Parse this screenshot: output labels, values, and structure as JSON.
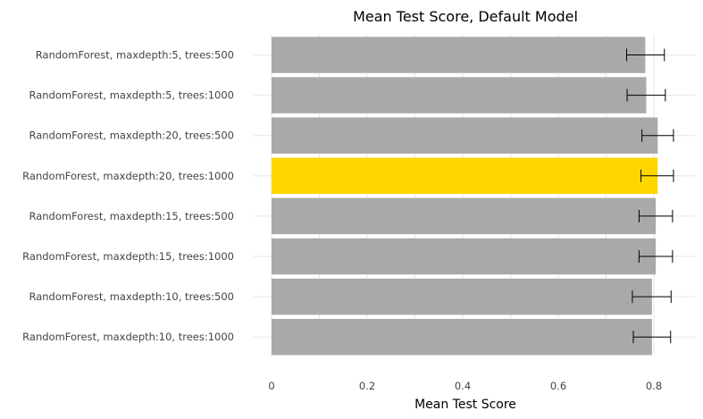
{
  "chart_data": {
    "type": "bar",
    "orientation": "horizontal",
    "title": "Mean Test Score, Default Model",
    "xlabel": "Mean Test Score",
    "ylabel": "",
    "xlim": [
      0,
      0.88
    ],
    "xticks": [
      0,
      0.2,
      0.4,
      0.6,
      0.8
    ],
    "xtick_labels": [
      "0",
      "0.2",
      "0.4",
      "0.6",
      "0.8"
    ],
    "grid": true,
    "legend": "none",
    "categories": [
      "RandomForest, maxdepth:5, trees:500",
      "RandomForest, maxdepth:5, trees:1000",
      "RandomForest, maxdepth:20, trees:500",
      "RandomForest, maxdepth:20, trees:1000",
      "RandomForest, maxdepth:15, trees:500",
      "RandomForest, maxdepth:15, trees:1000",
      "RandomForest, maxdepth:10, trees:500",
      "RandomForest, maxdepth:10, trees:1000"
    ],
    "values": [
      0.782,
      0.784,
      0.808,
      0.808,
      0.804,
      0.804,
      0.796,
      0.796
    ],
    "error_low": [
      0.743,
      0.744,
      0.775,
      0.773,
      0.769,
      0.769,
      0.755,
      0.757
    ],
    "error_high": [
      0.822,
      0.824,
      0.841,
      0.841,
      0.839,
      0.839,
      0.836,
      0.835
    ],
    "highlight_index": 3,
    "colors": {
      "bar": "#a9a9a9",
      "highlight": "#ffd700",
      "errorbar": "#000000"
    }
  }
}
